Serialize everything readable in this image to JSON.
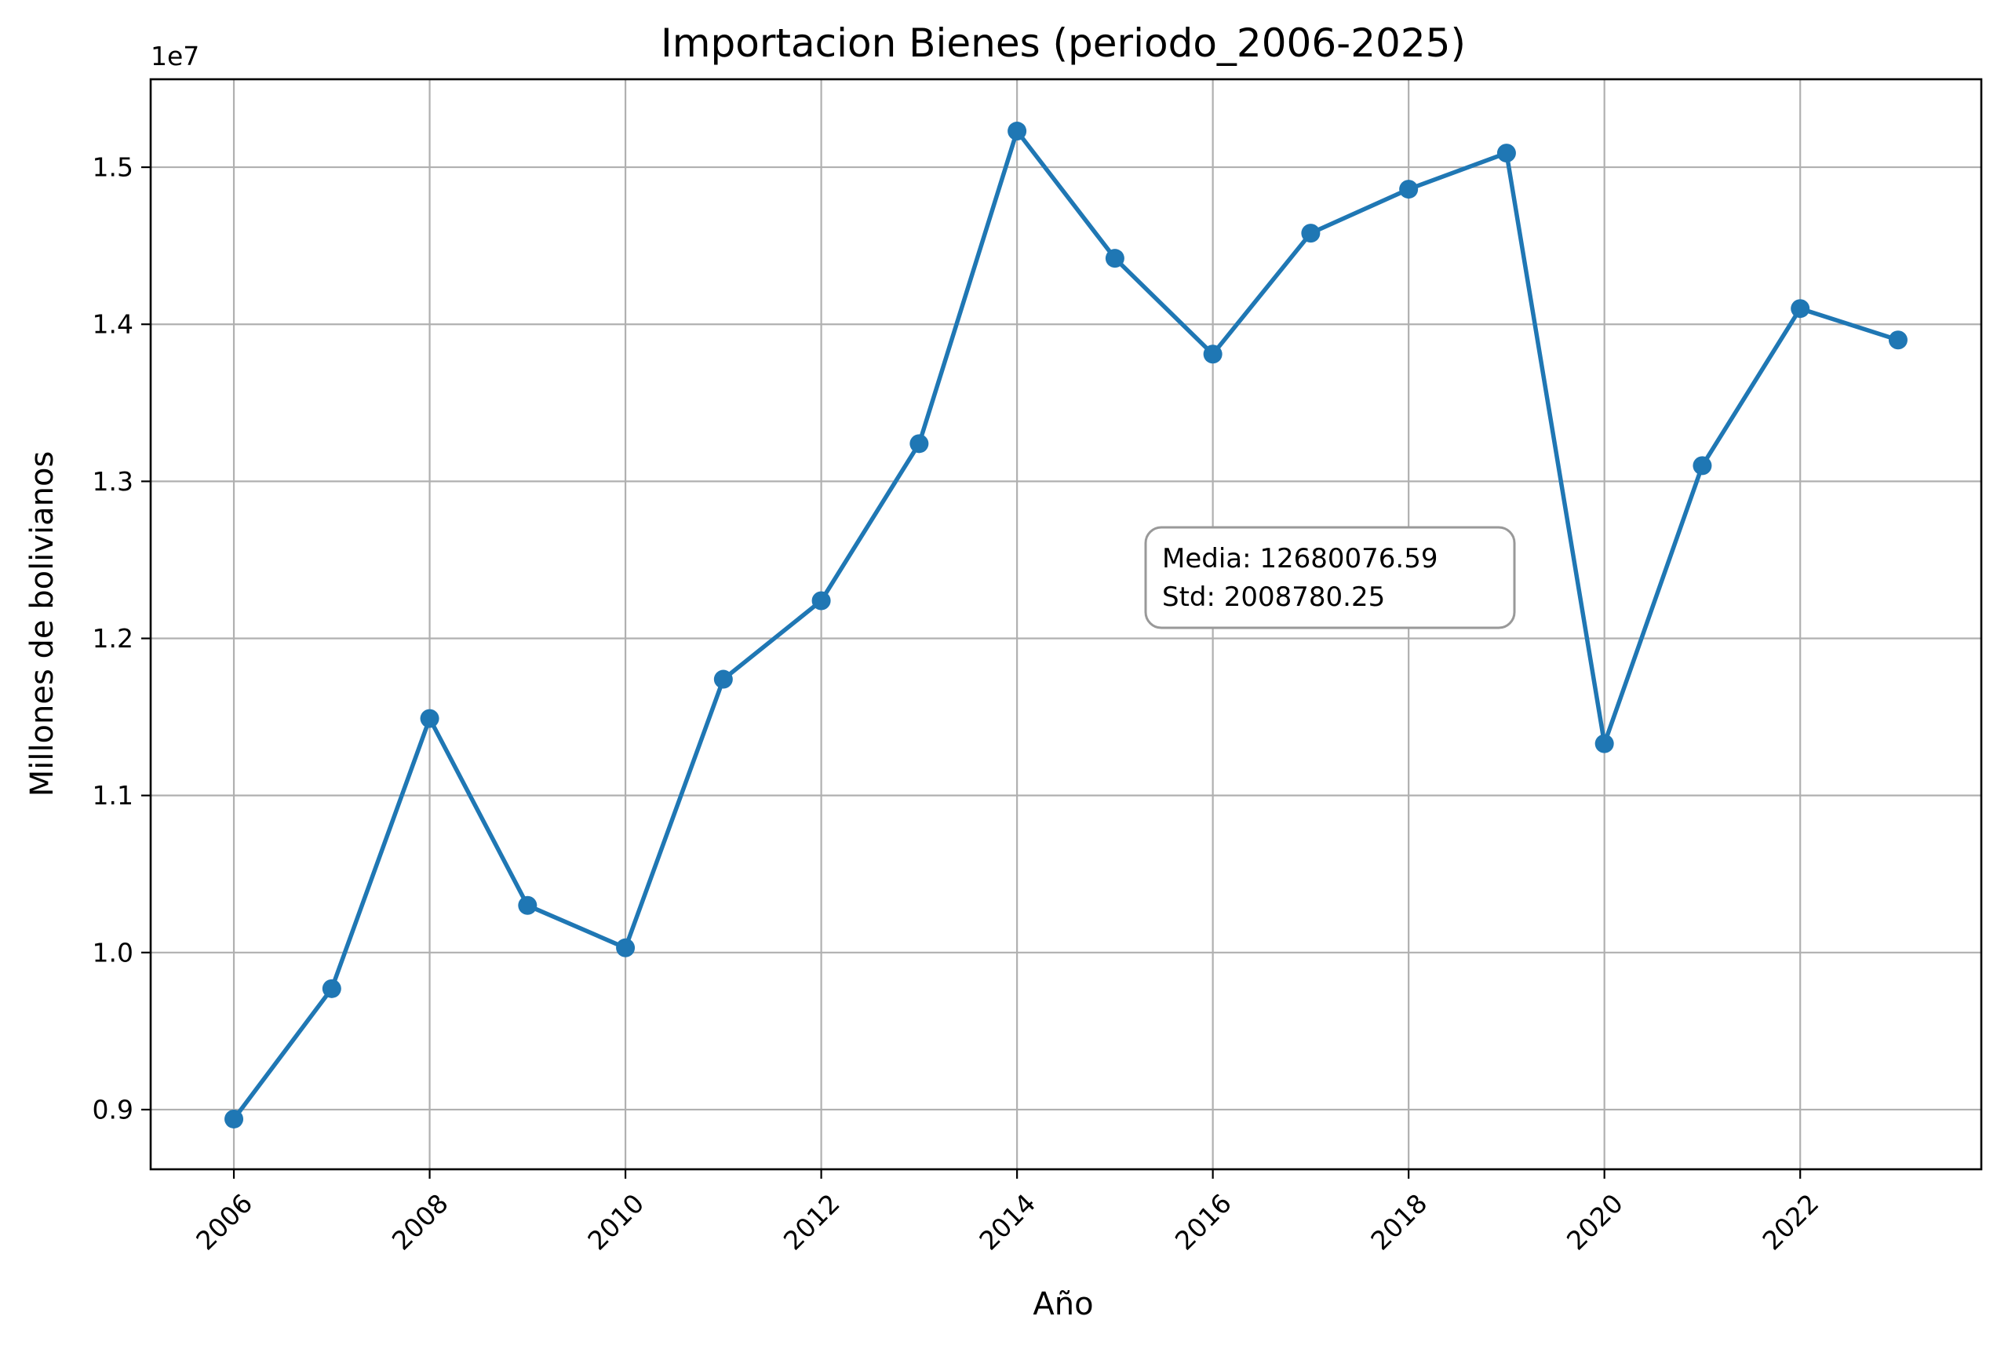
{
  "chart_data": {
    "type": "line",
    "title": "Importacion Bienes (periodo_2006-2025)",
    "xlabel": "Año",
    "ylabel": "Millones de bolivianos",
    "y_offset_label": "1e7",
    "x": [
      2006,
      2007,
      2008,
      2009,
      2010,
      2011,
      2012,
      2013,
      2014,
      2015,
      2016,
      2017,
      2018,
      2019,
      2020,
      2021,
      2022,
      2023
    ],
    "series": [
      {
        "values": [
          8940000,
          9770000,
          11490000,
          10300000,
          10030000,
          11740000,
          12240000,
          13240000,
          15230000,
          14420000,
          13810000,
          14580000,
          14860000,
          15090000,
          11330000,
          13100000,
          14100000,
          13900000
        ],
        "color": "#1f77b4",
        "marker": "circle"
      }
    ],
    "x_ticks": [
      "2006",
      "2008",
      "2010",
      "2012",
      "2014",
      "2016",
      "2018",
      "2020",
      "2022"
    ],
    "y_ticks": [
      "0.9",
      "1.0",
      "1.1",
      "1.2",
      "1.3",
      "1.4",
      "1.5"
    ],
    "xlim": [
      2005.15,
      2023.85
    ],
    "ylim": [
      8620000,
      15560000
    ],
    "grid": true,
    "x_tick_rotation": "45 degrees",
    "annotation": {
      "lines": [
        "Media: 12680076.59",
        "Std: 2008780.25"
      ]
    }
  }
}
